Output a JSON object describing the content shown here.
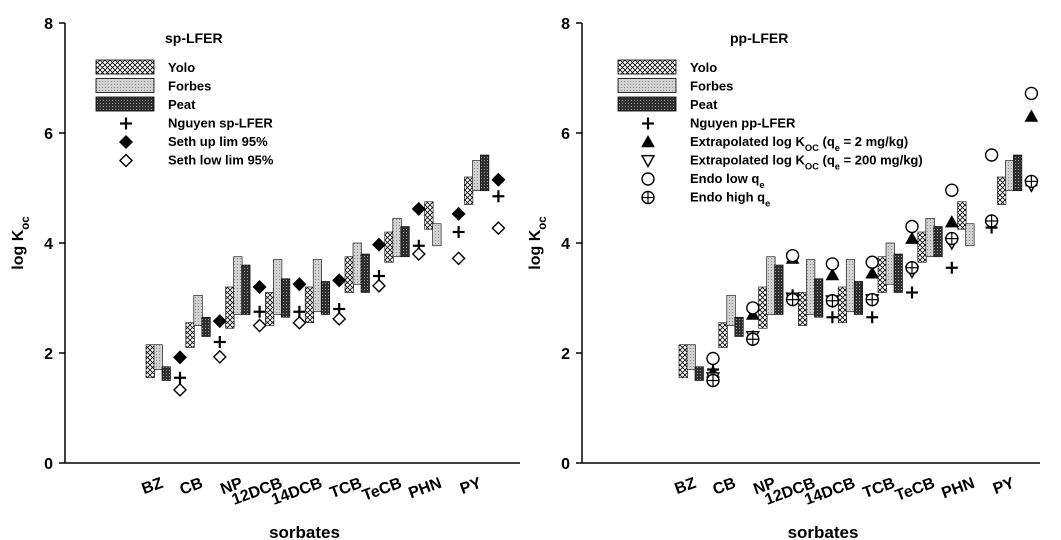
{
  "colors": {
    "yolo": "#ffffff",
    "forbes": "#cfcfcf",
    "peat": "#3a3a3a",
    "ink": "#000000"
  },
  "chart_data": [
    {
      "type": "bar",
      "title": "sp-LFER",
      "xlabel": "sorbates",
      "ylabel": "log K",
      "ylabel_sub": "oc",
      "ylim": [
        0,
        8
      ],
      "yticks": [
        "0",
        "2",
        "4",
        "6",
        "8"
      ],
      "categories": [
        "BZ",
        "CB",
        "NP",
        "12DCB",
        "14DCB",
        "TCB",
        "TeCB",
        "PHN",
        "PY"
      ],
      "floating_series": [
        {
          "name": "Yolo",
          "pattern": "crosshatch",
          "ranges": [
            [
              1.55,
              2.15
            ],
            [
              2.1,
              2.55
            ],
            [
              2.45,
              3.2
            ],
            [
              2.5,
              3.1
            ],
            [
              2.55,
              3.2
            ],
            [
              3.1,
              3.75
            ],
            [
              3.65,
              4.2
            ],
            [
              4.25,
              4.75
            ],
            [
              4.7,
              5.2
            ]
          ]
        },
        {
          "name": "Forbes",
          "pattern": "light",
          "ranges": [
            [
              1.7,
              2.15
            ],
            [
              2.5,
              3.05
            ],
            [
              2.7,
              3.75
            ],
            [
              2.7,
              3.7
            ],
            [
              2.75,
              3.7
            ],
            [
              3.25,
              4.0
            ],
            [
              3.75,
              4.45
            ],
            [
              3.95,
              4.35
            ],
            [
              4.95,
              5.5
            ]
          ]
        },
        {
          "name": "Peat",
          "pattern": "dark",
          "ranges": [
            [
              1.5,
              1.75
            ],
            [
              2.3,
              2.65
            ],
            [
              2.7,
              3.6
            ],
            [
              2.65,
              3.35
            ],
            [
              2.7,
              3.3
            ],
            [
              3.1,
              3.8
            ],
            [
              3.75,
              4.3
            ],
            [
              null,
              null
            ],
            [
              4.95,
              5.6
            ]
          ]
        }
      ],
      "marker_series": [
        {
          "name": "Nguyen sp-LFER",
          "marker": "plus",
          "values": [
            1.55,
            2.2,
            2.75,
            2.75,
            2.8,
            3.4,
            3.95,
            4.2,
            4.85
          ]
        },
        {
          "name": "Seth up lim 95%",
          "marker": "diamond-filled",
          "values": [
            1.92,
            2.58,
            3.2,
            3.25,
            3.32,
            3.97,
            4.62,
            4.53,
            5.15
          ]
        },
        {
          "name": "Seth low lim 95%",
          "marker": "diamond-open",
          "values": [
            1.33,
            1.93,
            2.5,
            2.55,
            2.62,
            3.22,
            3.8,
            3.72,
            4.27
          ]
        }
      ]
    },
    {
      "type": "bar",
      "title": "pp-LFER",
      "xlabel": "sorbates",
      "ylabel": "log K",
      "ylabel_sub": "oc",
      "ylim": [
        0,
        8
      ],
      "yticks": [
        "0",
        "2",
        "4",
        "6",
        "8"
      ],
      "categories": [
        "BZ",
        "CB",
        "NP",
        "12DCB",
        "14DCB",
        "TCB",
        "TeCB",
        "PHN",
        "PY"
      ],
      "floating_series": [
        {
          "name": "Yolo",
          "pattern": "crosshatch",
          "ranges": [
            [
              1.55,
              2.15
            ],
            [
              2.1,
              2.55
            ],
            [
              2.45,
              3.2
            ],
            [
              2.5,
              3.1
            ],
            [
              2.55,
              3.2
            ],
            [
              3.1,
              3.75
            ],
            [
              3.65,
              4.2
            ],
            [
              4.25,
              4.75
            ],
            [
              4.7,
              5.2
            ]
          ]
        },
        {
          "name": "Forbes",
          "pattern": "light",
          "ranges": [
            [
              1.7,
              2.15
            ],
            [
              2.5,
              3.05
            ],
            [
              2.7,
              3.75
            ],
            [
              2.7,
              3.7
            ],
            [
              2.75,
              3.7
            ],
            [
              3.25,
              4.0
            ],
            [
              3.75,
              4.45
            ],
            [
              3.95,
              4.35
            ],
            [
              4.95,
              5.5
            ]
          ]
        },
        {
          "name": "Peat",
          "pattern": "dark",
          "ranges": [
            [
              1.5,
              1.75
            ],
            [
              2.3,
              2.65
            ],
            [
              2.7,
              3.6
            ],
            [
              2.65,
              3.35
            ],
            [
              2.7,
              3.3
            ],
            [
              3.1,
              3.8
            ],
            [
              3.75,
              4.3
            ],
            [
              null,
              null
            ],
            [
              4.95,
              5.6
            ]
          ]
        }
      ],
      "marker_series": [
        {
          "name": "Nguyen pp-LFER",
          "marker": "plus",
          "values": [
            1.7,
            2.3,
            3.05,
            2.65,
            2.65,
            3.1,
            3.55,
            4.28,
            5.05
          ]
        },
        {
          "name": "Extrapolated log K",
          "name_sub": "OC",
          "name_suffix": " (q",
          "name_sub2": "e",
          "name_tail": " = 2 mg/kg)",
          "marker": "triangle-filled",
          "values": [
            1.65,
            2.7,
            3.72,
            3.42,
            3.45,
            4.08,
            4.38,
            null,
            6.3
          ]
        },
        {
          "name": "Extrapolated log K",
          "name_sub": "OC",
          "name_suffix": " (q",
          "name_sub2": "e",
          "name_tail": " = 200 mg/kg)",
          "marker": "triangle-open",
          "values": [
            1.55,
            2.3,
            3.0,
            2.95,
            2.97,
            3.48,
            4.0,
            null,
            5.05
          ]
        },
        {
          "name": "Endo low q",
          "name_sub": "e",
          "marker": "circle-open",
          "values": [
            1.9,
            2.82,
            3.77,
            3.62,
            3.65,
            4.3,
            4.96,
            5.6,
            6.72
          ]
        },
        {
          "name": "Endo high q",
          "name_sub": "e",
          "marker": "circle-plus",
          "values": [
            1.5,
            2.25,
            2.97,
            2.95,
            2.97,
            3.55,
            4.08,
            4.4,
            5.12
          ]
        }
      ]
    }
  ]
}
